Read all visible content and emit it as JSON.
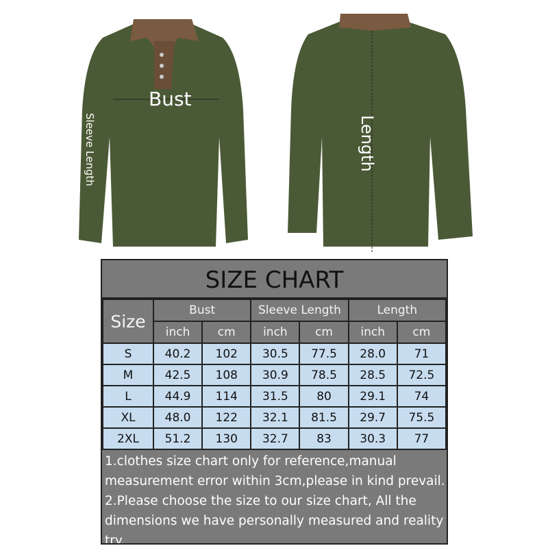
{
  "image_labels": {
    "bust": "Bust",
    "sleeve_length": "Sleeve Length",
    "length": "Length"
  },
  "size_chart": {
    "title": "SIZE CHART",
    "size_header": "Size",
    "groups": [
      "Bust",
      "Sleeve Length",
      "Length"
    ],
    "units": [
      "inch",
      "cm",
      "inch",
      "cm",
      "inch",
      "cm"
    ],
    "rows": [
      [
        "S",
        "40.2",
        "102",
        "30.5",
        "77.5",
        "28.0",
        "71"
      ],
      [
        "M",
        "42.5",
        "108",
        "30.9",
        "78.5",
        "28.5",
        "72.5"
      ],
      [
        "L",
        "44.9",
        "114",
        "31.5",
        "80",
        "29.1",
        "74"
      ],
      [
        "XL",
        "48.0",
        "122",
        "32.1",
        "81.5",
        "29.7",
        "75.5"
      ],
      [
        "2XL",
        "51.2",
        "130",
        "32.7",
        "83",
        "30.3",
        "77"
      ]
    ],
    "notes": [
      "1.clothes size chart only for reference,manual",
      "measurement error within 3cm,please in kind prevail.",
      "2.Please choose the size to our size chart, All the",
      "dimensions we have personally measured and reality",
      "try."
    ]
  },
  "colors": {
    "shirt": "#4a5a36",
    "collar": "#7a5a40",
    "header_bg": "#7a7a7a",
    "row_bg": "#c7dcef"
  }
}
